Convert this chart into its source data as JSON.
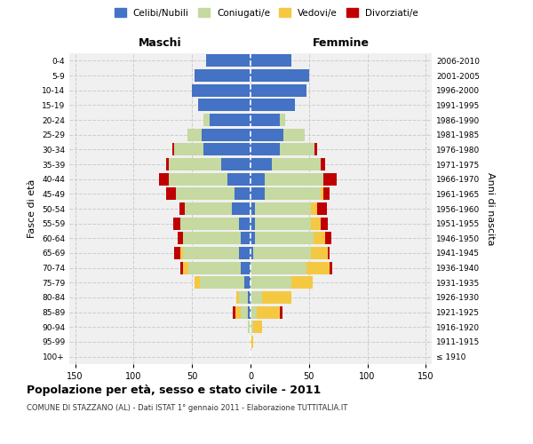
{
  "age_groups": [
    "100+",
    "95-99",
    "90-94",
    "85-89",
    "80-84",
    "75-79",
    "70-74",
    "65-69",
    "60-64",
    "55-59",
    "50-54",
    "45-49",
    "40-44",
    "35-39",
    "30-34",
    "25-29",
    "20-24",
    "15-19",
    "10-14",
    "5-9",
    "0-4"
  ],
  "birth_years": [
    "≤ 1910",
    "1911-1915",
    "1916-1920",
    "1921-1925",
    "1926-1930",
    "1931-1935",
    "1936-1940",
    "1941-1945",
    "1946-1950",
    "1951-1955",
    "1956-1960",
    "1961-1965",
    "1966-1970",
    "1971-1975",
    "1976-1980",
    "1981-1985",
    "1986-1990",
    "1991-1995",
    "1996-2000",
    "2001-2005",
    "2006-2010"
  ],
  "maschi": {
    "celibi": [
      0,
      0,
      0,
      2,
      2,
      5,
      8,
      10,
      8,
      10,
      16,
      14,
      20,
      25,
      40,
      42,
      35,
      45,
      50,
      48,
      38
    ],
    "coniugati": [
      0,
      0,
      2,
      6,
      8,
      38,
      45,
      48,
      50,
      50,
      40,
      50,
      50,
      45,
      25,
      12,
      5,
      0,
      0,
      0,
      0
    ],
    "vedovi": [
      0,
      0,
      0,
      5,
      2,
      5,
      5,
      2,
      0,
      0,
      0,
      0,
      0,
      0,
      0,
      0,
      0,
      0,
      0,
      0,
      0
    ],
    "divorziati": [
      0,
      0,
      0,
      2,
      0,
      0,
      2,
      5,
      4,
      6,
      5,
      8,
      8,
      2,
      2,
      0,
      0,
      0,
      0,
      0,
      0
    ]
  },
  "femmine": {
    "nubili": [
      0,
      0,
      0,
      0,
      0,
      0,
      0,
      2,
      4,
      4,
      4,
      12,
      12,
      18,
      25,
      28,
      25,
      38,
      48,
      50,
      35
    ],
    "coniugate": [
      0,
      0,
      2,
      5,
      10,
      35,
      48,
      50,
      50,
      48,
      48,
      48,
      50,
      42,
      30,
      18,
      5,
      0,
      0,
      0,
      0
    ],
    "vedove": [
      0,
      2,
      8,
      20,
      25,
      18,
      20,
      14,
      10,
      8,
      5,
      2,
      0,
      0,
      0,
      0,
      0,
      0,
      0,
      0,
      0
    ],
    "divorziate": [
      0,
      0,
      0,
      2,
      0,
      0,
      2,
      2,
      5,
      6,
      8,
      6,
      12,
      4,
      2,
      0,
      0,
      0,
      0,
      0,
      0
    ]
  },
  "colors": {
    "celibi": "#4472c4",
    "coniugati": "#c5d9a0",
    "vedovi": "#f5c842",
    "divorziati": "#c00000"
  },
  "xlim": 155,
  "title": "Popolazione per età, sesso e stato civile - 2011",
  "subtitle": "COMUNE DI STAZZANO (AL) - Dati ISTAT 1° gennaio 2011 - Elaborazione TUTTITALIA.IT",
  "legend_labels": [
    "Celibi/Nubili",
    "Coniugati/e",
    "Vedovi/e",
    "Divorziati/e"
  ],
  "ylabel_left": "Fasce di età",
  "ylabel_right": "Anni di nascita",
  "maschi_label": "Maschi",
  "femmine_label": "Femmine"
}
